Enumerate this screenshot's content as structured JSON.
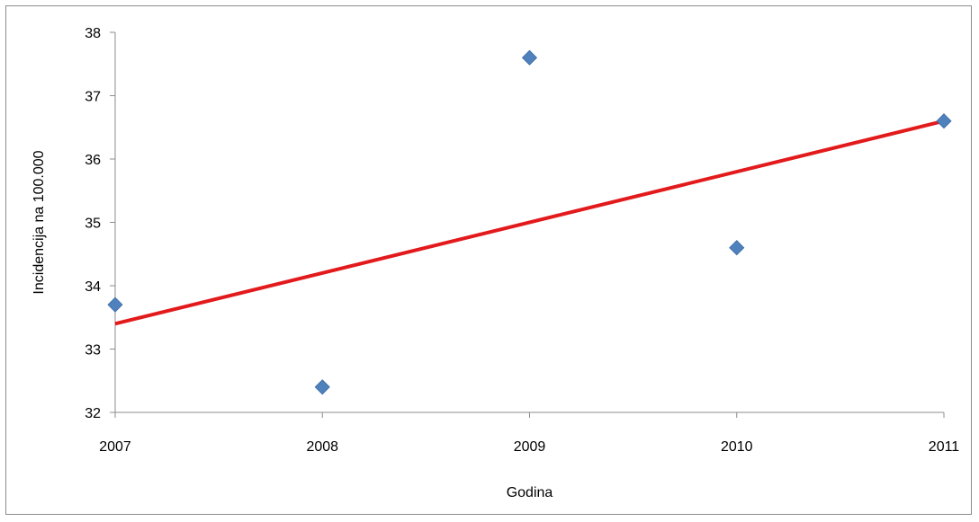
{
  "chart_data": {
    "type": "scatter",
    "title": "",
    "xlabel": "Godina",
    "ylabel": "Incidencija na 100.000",
    "x_ticks": [
      "2007",
      "2008",
      "2009",
      "2010",
      "2011"
    ],
    "y_ticks": [
      "32",
      "33",
      "34",
      "35",
      "36",
      "37",
      "38"
    ],
    "xlim": [
      2007,
      2011
    ],
    "ylim": [
      32,
      38
    ],
    "grid": false,
    "legend": "none",
    "series": [
      {
        "marker": "diamond",
        "color": "#4F81BD",
        "points": [
          {
            "x": 2007,
            "y": 33.7
          },
          {
            "x": 2008,
            "y": 32.4
          },
          {
            "x": 2009,
            "y": 37.6
          },
          {
            "x": 2010,
            "y": 34.6
          },
          {
            "x": 2011,
            "y": 36.6
          }
        ]
      }
    ],
    "trendline": {
      "type": "linear",
      "color": "#E31A1C",
      "start": {
        "x": 2007,
        "y": 33.4
      },
      "end": {
        "x": 2011,
        "y": 36.6
      }
    }
  }
}
